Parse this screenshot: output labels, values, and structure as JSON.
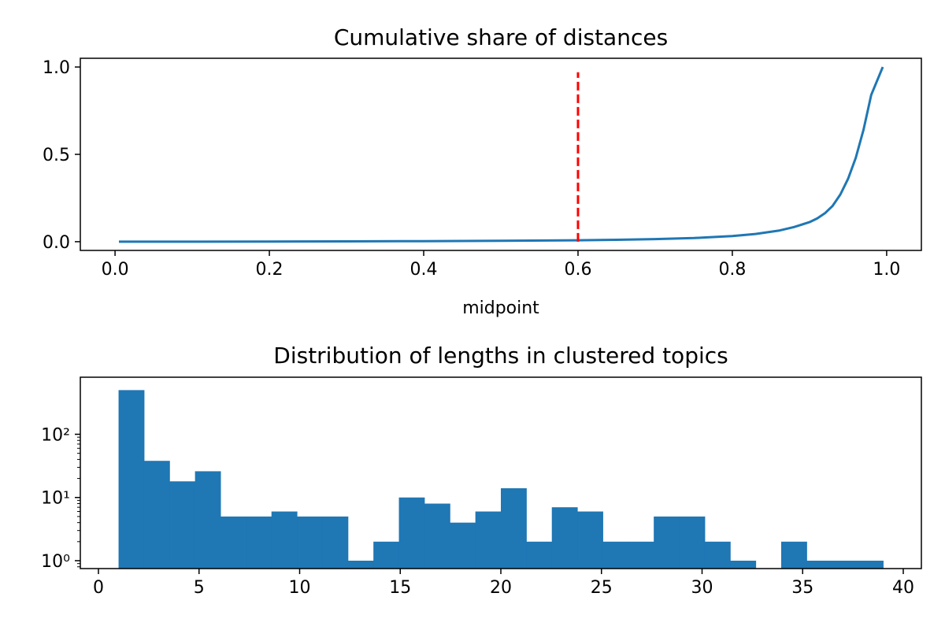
{
  "chart_data": [
    {
      "type": "line",
      "title": "Cumulative share of distances",
      "xlabel": "midpoint",
      "ylabel": "",
      "xlim": [
        -0.045,
        1.045
      ],
      "ylim": [
        -0.05,
        1.05
      ],
      "xticks": [
        "0.0",
        "0.2",
        "0.4",
        "0.6",
        "0.8",
        "1.0"
      ],
      "yticks": [
        "0.0",
        "0.5",
        "1.0"
      ],
      "grid": false,
      "series": [
        {
          "color": "#1f77b4",
          "x": [
            0.005,
            0.1,
            0.2,
            0.3,
            0.4,
            0.5,
            0.6,
            0.65,
            0.7,
            0.75,
            0.8,
            0.83,
            0.86,
            0.88,
            0.9,
            0.91,
            0.92,
            0.93,
            0.94,
            0.95,
            0.96,
            0.97,
            0.98,
            0.995
          ],
          "y": [
            0.0,
            0.0,
            0.001,
            0.002,
            0.003,
            0.005,
            0.008,
            0.011,
            0.015,
            0.021,
            0.032,
            0.044,
            0.063,
            0.084,
            0.112,
            0.133,
            0.163,
            0.205,
            0.27,
            0.36,
            0.48,
            0.64,
            0.84,
            1.0
          ]
        }
      ],
      "annotations": [
        {
          "type": "vline",
          "x": 0.6,
          "y0": 0.0,
          "y1": 0.97,
          "color": "#ff0000",
          "style": "dashed"
        }
      ]
    },
    {
      "type": "histogram",
      "title": "Distribution of lengths in clustered topics",
      "xlabel": "",
      "ylabel": "",
      "xlim": [
        -0.9,
        40.9
      ],
      "ylim": [
        0.75,
        800
      ],
      "yscale": "log",
      "xticks": [
        "0",
        "5",
        "10",
        "15",
        "20",
        "25",
        "30",
        "35",
        "40"
      ],
      "yticks": [
        "10⁰",
        "10¹",
        "10²"
      ],
      "grid": false,
      "color": "#1f77b4",
      "bin_edges": [
        1,
        2.2667,
        3.5333,
        4.8,
        6.0667,
        7.3333,
        8.6,
        9.8667,
        11.1333,
        12.4,
        13.6667,
        14.9333,
        16.2,
        17.4667,
        18.7333,
        20,
        21.2667,
        22.5333,
        23.8,
        25.0667,
        26.3333,
        27.6,
        28.8667,
        30.1333,
        31.4,
        32.6667,
        33.9333,
        35.2,
        36.4667,
        37.7333,
        39
      ],
      "counts": [
        500,
        38,
        18,
        26,
        5,
        5,
        6,
        5,
        5,
        1,
        2,
        10,
        8,
        4,
        6,
        14,
        2,
        7,
        6,
        2,
        2,
        5,
        5,
        2,
        1,
        0,
        2,
        1,
        1,
        1
      ]
    }
  ]
}
